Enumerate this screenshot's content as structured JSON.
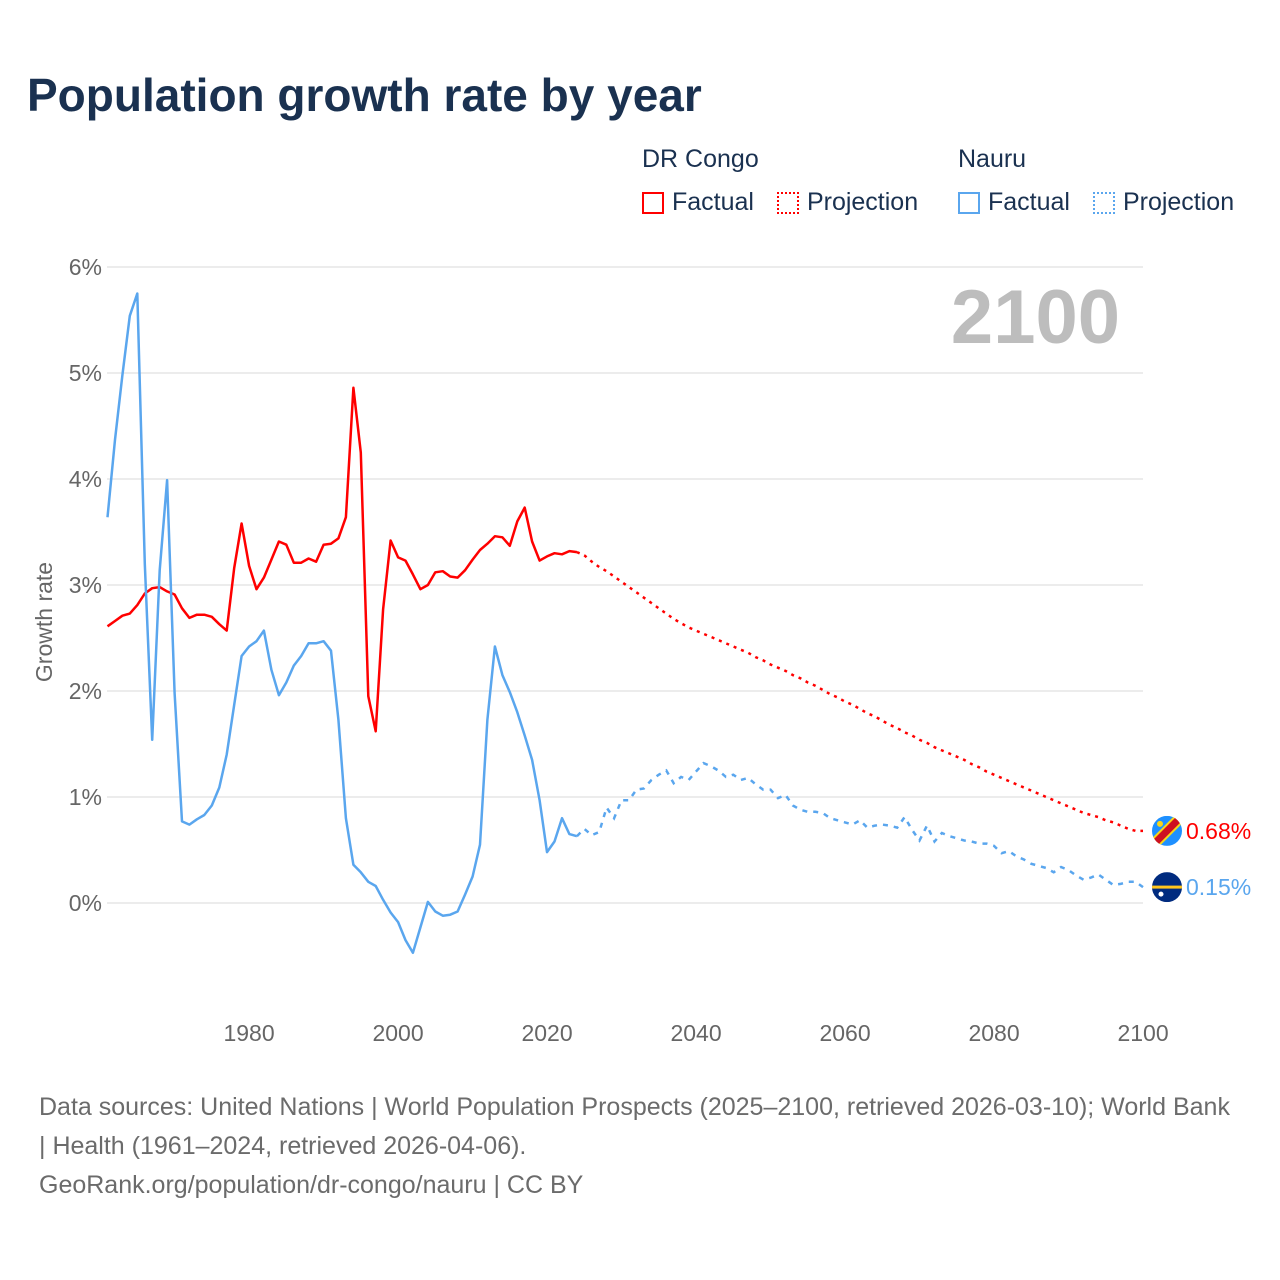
{
  "title": "Population growth rate by year",
  "legend": {
    "groups": [
      {
        "name": "DR Congo",
        "factual": "Factual",
        "projection": "Projection",
        "color": "#ff0000"
      },
      {
        "name": "Nauru",
        "factual": "Factual",
        "projection": "Projection",
        "color": "#5aa6ee"
      }
    ]
  },
  "year_watermark": "2100",
  "footer": {
    "sources": "Data sources: United Nations | World Population Prospects (2025–2100, retrieved 2026-03-10); World Bank | Health (1961–2024, retrieved 2026-04-06).",
    "credit": "GeoRank.org/population/dr-congo/nauru | CC BY"
  },
  "chart_data": {
    "type": "line",
    "title": "Population growth rate by year",
    "xlabel": "",
    "ylabel": "Growth rate",
    "xlim": [
      1961,
      2100
    ],
    "ylim": [
      -0.8,
      6
    ],
    "grid": true,
    "x_ticks": [
      1980,
      2000,
      2020,
      2040,
      2060,
      2080,
      2100
    ],
    "x_tick_labels": [
      "1980",
      "2000",
      "2020",
      "2040",
      "2060",
      "2080",
      "2100"
    ],
    "y_ticks": [
      0,
      1,
      2,
      3,
      4,
      5,
      6
    ],
    "y_tick_labels": [
      "0%",
      "1%",
      "2%",
      "3%",
      "4%",
      "5%",
      "6%"
    ],
    "series": [
      {
        "name": "DR Congo",
        "color": "#ff0000",
        "end_label": "0.68%",
        "factual_start_year": 1961,
        "factual": [
          2.61,
          2.66,
          2.71,
          2.73,
          2.81,
          2.92,
          2.97,
          2.98,
          2.94,
          2.91,
          2.78,
          2.69,
          2.72,
          2.72,
          2.7,
          2.63,
          2.57,
          3.16,
          3.58,
          3.18,
          2.96,
          3.07,
          3.24,
          3.41,
          3.38,
          3.21,
          3.21,
          3.25,
          3.22,
          3.38,
          3.39,
          3.44,
          3.64,
          4.86,
          4.25,
          1.95,
          1.62,
          2.77,
          3.42,
          3.26,
          3.23,
          3.1,
          2.96,
          3.0,
          3.12,
          3.13,
          3.08,
          3.07,
          3.14,
          3.24,
          3.33,
          3.39,
          3.46,
          3.45,
          3.37,
          3.6,
          3.73,
          3.41,
          3.23,
          3.27,
          3.3,
          3.29,
          3.32,
          3.31
        ],
        "projection_start_year": 2024,
        "projection": [
          3.31,
          3.28,
          3.22,
          3.17,
          3.13,
          3.08,
          3.03,
          2.98,
          2.93,
          2.88,
          2.83,
          2.78,
          2.73,
          2.68,
          2.64,
          2.6,
          2.57,
          2.54,
          2.51,
          2.48,
          2.45,
          2.42,
          2.39,
          2.36,
          2.32,
          2.29,
          2.25,
          2.22,
          2.19,
          2.15,
          2.12,
          2.08,
          2.05,
          2.01,
          1.97,
          1.94,
          1.9,
          1.87,
          1.83,
          1.79,
          1.76,
          1.72,
          1.68,
          1.65,
          1.61,
          1.58,
          1.54,
          1.51,
          1.47,
          1.44,
          1.41,
          1.38,
          1.35,
          1.31,
          1.28,
          1.24,
          1.21,
          1.18,
          1.15,
          1.12,
          1.09,
          1.06,
          1.03,
          1.0,
          0.97,
          0.94,
          0.91,
          0.88,
          0.85,
          0.83,
          0.81,
          0.78,
          0.76,
          0.73,
          0.7,
          0.68,
          0.68
        ]
      },
      {
        "name": "Nauru",
        "color": "#5aa6ee",
        "end_label": "0.15%",
        "factual_start_year": 1961,
        "factual": [
          3.64,
          4.37,
          4.98,
          5.54,
          5.75,
          3.2,
          1.54,
          3.14,
          3.99,
          1.98,
          0.77,
          0.74,
          0.79,
          0.83,
          0.92,
          1.09,
          1.4,
          1.87,
          2.33,
          2.42,
          2.47,
          2.57,
          2.2,
          1.96,
          2.08,
          2.24,
          2.33,
          2.45,
          2.45,
          2.47,
          2.38,
          1.73,
          0.8,
          0.36,
          0.29,
          0.2,
          0.16,
          0.03,
          -0.09,
          -0.18,
          -0.35,
          -0.47,
          -0.23,
          0.01,
          -0.08,
          -0.12,
          -0.11,
          -0.08,
          0.08,
          0.25,
          0.55,
          1.73,
          2.42,
          2.15,
          1.99,
          1.8,
          1.58,
          1.35,
          0.97,
          0.48,
          0.58,
          0.8,
          0.65,
          0.63
        ],
        "projection_start_year": 2024,
        "projection": [
          0.63,
          0.7,
          0.64,
          0.67,
          0.9,
          0.8,
          0.97,
          0.97,
          1.07,
          1.08,
          1.16,
          1.21,
          1.25,
          1.13,
          1.19,
          1.16,
          1.24,
          1.32,
          1.29,
          1.25,
          1.19,
          1.21,
          1.16,
          1.18,
          1.12,
          1.07,
          1.07,
          0.99,
          1.02,
          0.92,
          0.88,
          0.86,
          0.86,
          0.85,
          0.8,
          0.78,
          0.76,
          0.74,
          0.78,
          0.71,
          0.73,
          0.74,
          0.73,
          0.71,
          0.81,
          0.69,
          0.59,
          0.73,
          0.58,
          0.66,
          0.63,
          0.61,
          0.59,
          0.58,
          0.56,
          0.56,
          0.54,
          0.47,
          0.49,
          0.44,
          0.41,
          0.37,
          0.35,
          0.33,
          0.29,
          0.34,
          0.31,
          0.26,
          0.22,
          0.24,
          0.27,
          0.22,
          0.17,
          0.18,
          0.2,
          0.2,
          0.15
        ]
      }
    ]
  }
}
